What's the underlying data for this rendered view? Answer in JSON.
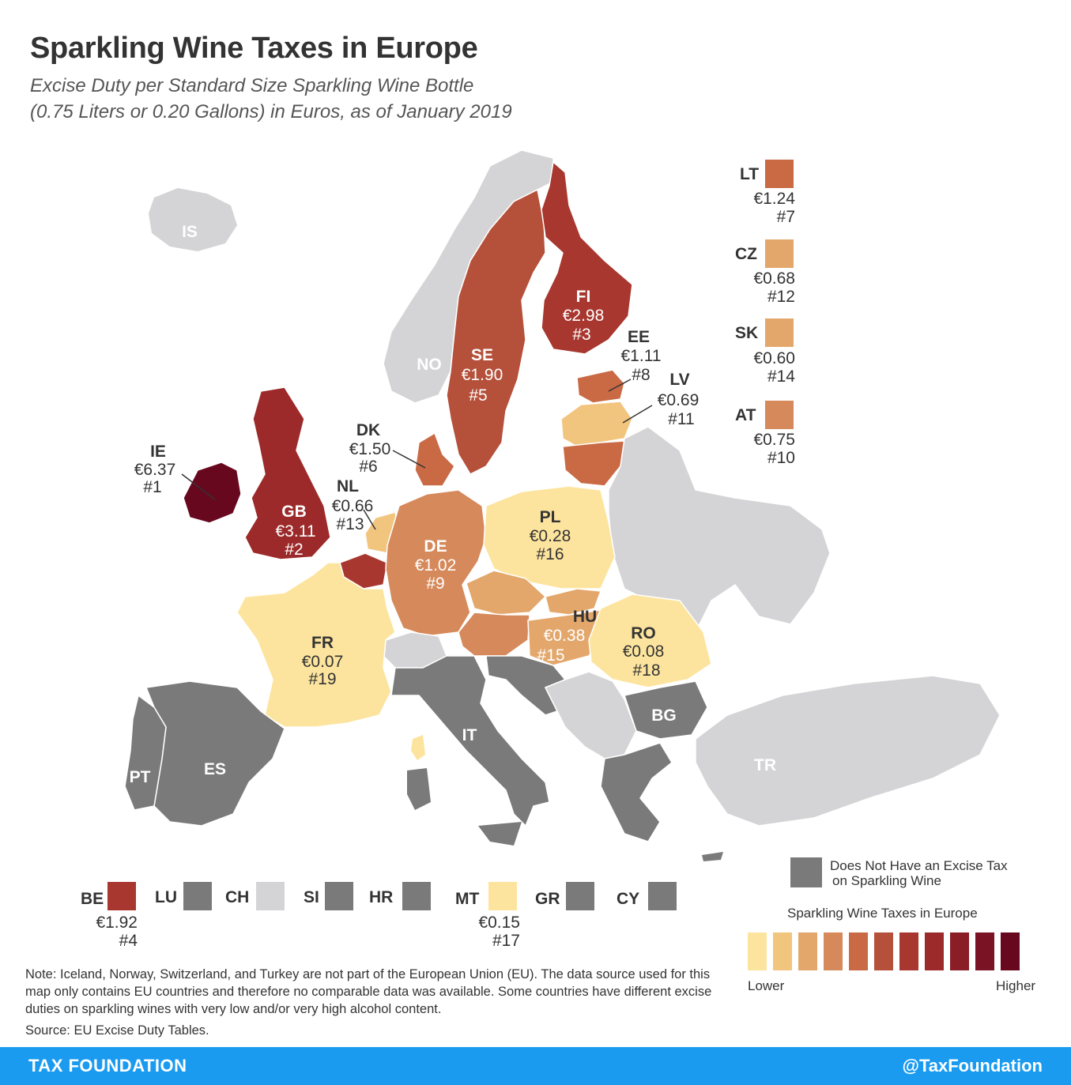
{
  "title": "Sparkling Wine Taxes in Europe",
  "subtitle_line1": "Excise Duty per Standard Size Sparkling Wine Bottle",
  "subtitle_line2": "(0.75 Liters or 0.20 Gallons) in Euros, as of January 2019",
  "colors": {
    "no_tax": "#7a7a7a",
    "non_eu": "#d4d4d6",
    "scale": [
      "#fde49e",
      "#f2c57f",
      "#e3a76b",
      "#d6895a",
      "#c96a45",
      "#b5503a",
      "#a8372f",
      "#9c2a2a",
      "#8a1e26",
      "#7a1424",
      "#68081f"
    ]
  },
  "countries": {
    "IE": {
      "code": "IE",
      "value": "€6.37",
      "rank": "#1"
    },
    "GB": {
      "code": "GB",
      "value": "€3.11",
      "rank": "#2"
    },
    "FI": {
      "code": "FI",
      "value": "€2.98",
      "rank": "#3"
    },
    "BE": {
      "code": "BE",
      "value": "€1.92",
      "rank": "#4"
    },
    "SE": {
      "code": "SE",
      "value": "€1.90",
      "rank": "#5"
    },
    "DK": {
      "code": "DK",
      "value": "€1.50",
      "rank": "#6"
    },
    "LT": {
      "code": "LT",
      "value": "€1.24",
      "rank": "#7"
    },
    "EE": {
      "code": "EE",
      "value": "€1.11",
      "rank": "#8"
    },
    "DE": {
      "code": "DE",
      "value": "€1.02",
      "rank": "#9"
    },
    "AT": {
      "code": "AT",
      "value": "€0.75",
      "rank": "#10"
    },
    "LV": {
      "code": "LV",
      "value": "€0.69",
      "rank": "#11"
    },
    "CZ": {
      "code": "CZ",
      "value": "€0.68",
      "rank": "#12"
    },
    "NL": {
      "code": "NL",
      "value": "€0.66",
      "rank": "#13"
    },
    "SK": {
      "code": "SK",
      "value": "€0.60",
      "rank": "#14"
    },
    "HU": {
      "code": "HU",
      "value": "€0.38",
      "rank": "#15"
    },
    "PL": {
      "code": "PL",
      "value": "€0.28",
      "rank": "#16"
    },
    "MT": {
      "code": "MT",
      "value": "€0.15",
      "rank": "#17"
    },
    "RO": {
      "code": "RO",
      "value": "€0.08",
      "rank": "#18"
    },
    "FR": {
      "code": "FR",
      "value": "€0.07",
      "rank": "#19"
    }
  },
  "no_tax_labels": {
    "ES": "ES",
    "PT": "PT",
    "IT": "IT",
    "BG": "BG",
    "LU": "LU",
    "SI": "SI",
    "HR": "HR",
    "GR": "GR",
    "CY": "CY"
  },
  "non_eu_labels": {
    "IS": "IS",
    "NO": "NO",
    "TR": "TR",
    "CH": "CH"
  },
  "legend": {
    "no_tax_line1": "Does Not Have an Excise Tax",
    "no_tax_line2": "on Sparkling Wine",
    "scale_title": "Sparkling Wine Taxes in Europe",
    "lower": "Lower",
    "higher": "Higher"
  },
  "note": "Note: Iceland, Norway, Switzerland, and Turkey are not part of the European Union (EU). The data source used for this map only contains EU countries and therefore no comparable data was available. Some countries have different excise duties on sparkling wines with very low and/or very high alcohol content.",
  "source": "Source: EU Excise Duty Tables.",
  "footer": {
    "brand": "TAX FOUNDATION",
    "handle": "@TaxFoundation"
  }
}
